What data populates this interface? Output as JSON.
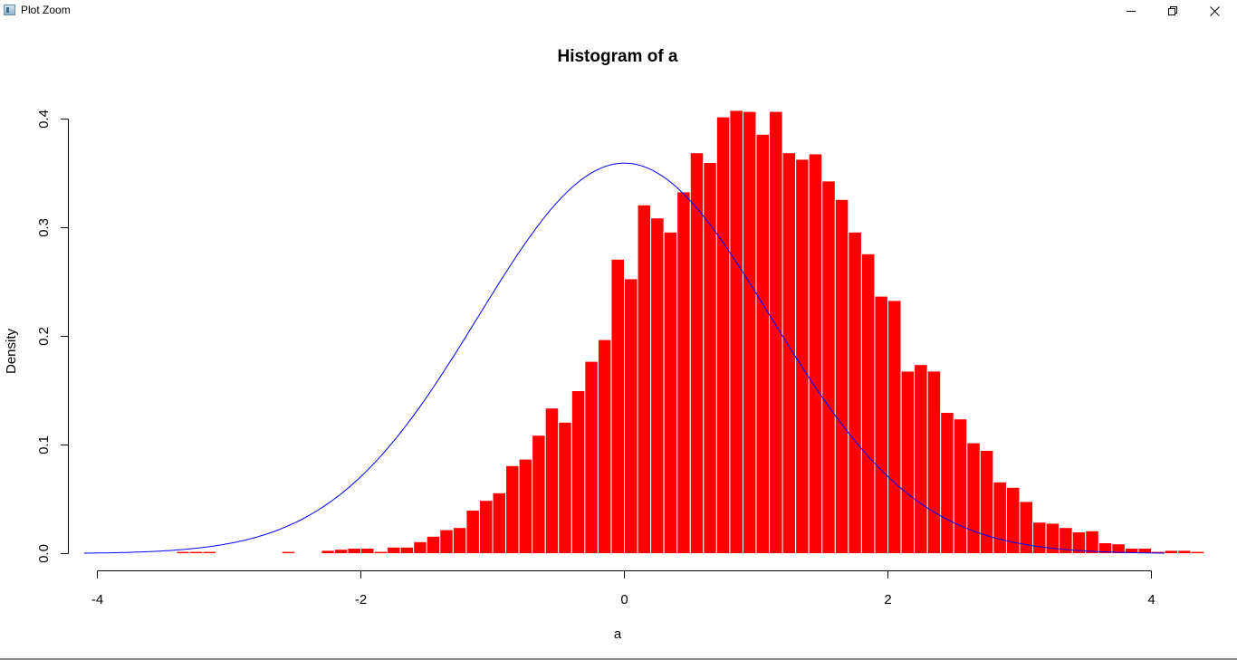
{
  "window": {
    "title": "Plot Zoom",
    "controls": {
      "minimize": "minimize-icon",
      "maximize": "restore-icon",
      "close": "close-icon"
    }
  },
  "colors": {
    "bars": "#ff0000",
    "bar_border": "#ffffff",
    "curve": "#0000ff"
  },
  "chart_data": {
    "type": "bar",
    "title": "Histogram of a",
    "xlabel": "a",
    "ylabel": "Density",
    "xlim": [
      -4,
      4
    ],
    "ylim": [
      0,
      0.4
    ],
    "x_ticks": [
      -4,
      -2,
      0,
      2,
      4
    ],
    "y_ticks": [
      0.0,
      0.1,
      0.2,
      0.3,
      0.4
    ],
    "x_tick_labels": [
      "-4",
      "-2",
      "0",
      "2",
      "4"
    ],
    "y_tick_labels": [
      "0.0",
      "0.1",
      "0.2",
      "0.3",
      "0.4"
    ],
    "grid": false,
    "bin_width": 0.1,
    "bins_start": -4.0,
    "histogram_density": [
      0.0,
      0.0,
      0.0,
      0.0,
      0.0,
      0.0,
      0.002,
      0.002,
      0.002,
      0.0,
      0.0,
      0.0,
      0.0,
      0.0,
      0.002,
      0.0,
      0.0,
      0.003,
      0.004,
      0.005,
      0.005,
      0.002,
      0.006,
      0.006,
      0.011,
      0.016,
      0.022,
      0.024,
      0.04,
      0.049,
      0.056,
      0.081,
      0.087,
      0.109,
      0.134,
      0.121,
      0.15,
      0.177,
      0.197,
      0.271,
      0.253,
      0.321,
      0.309,
      0.296,
      0.333,
      0.369,
      0.36,
      0.402,
      0.408,
      0.407,
      0.386,
      0.407,
      0.369,
      0.363,
      0.368,
      0.343,
      0.326,
      0.296,
      0.276,
      0.237,
      0.233,
      0.168,
      0.174,
      0.168,
      0.13,
      0.124,
      0.102,
      0.095,
      0.066,
      0.061,
      0.048,
      0.029,
      0.028,
      0.024,
      0.02,
      0.021,
      0.01,
      0.009,
      0.005,
      0.005,
      0.002,
      0.003,
      0.003,
      0.002,
      0.0,
      0.0,
      0.0,
      0.0,
      0.0,
      0.0,
      0.0
    ],
    "curve": {
      "type": "normal_density",
      "mean": 0,
      "sd": 1.11,
      "x_range": [
        -4.1,
        4.1
      ]
    }
  }
}
